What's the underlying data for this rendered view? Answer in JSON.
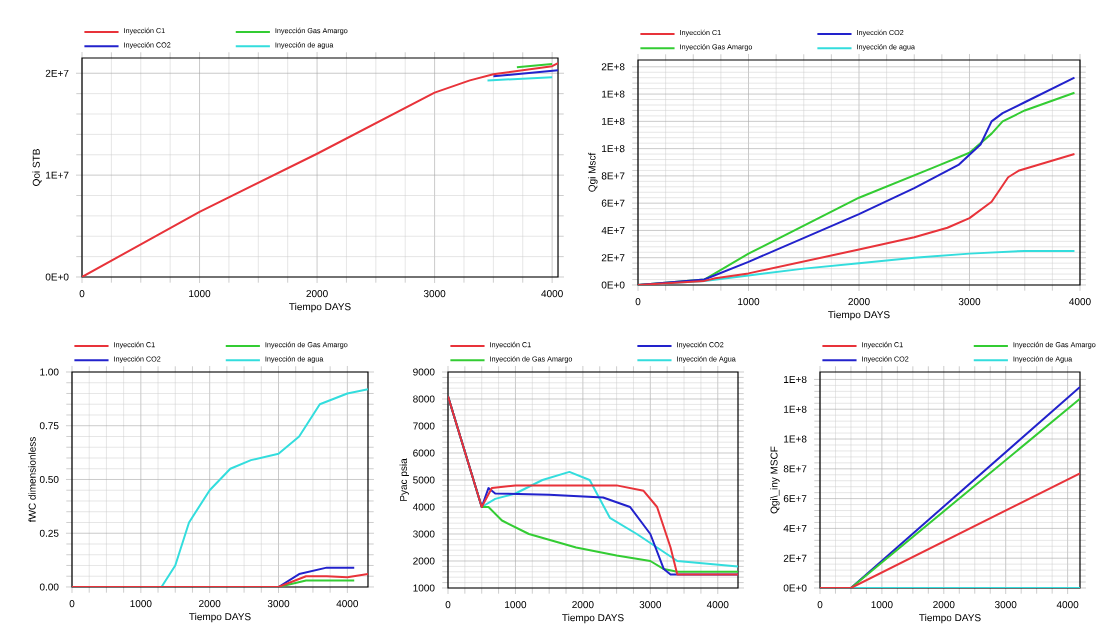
{
  "chart_data": [
    {
      "type": "line",
      "xlabel": "Tiempo   DAYS",
      "ylabel": "Qoi   STB",
      "xlim": [
        0,
        4050
      ],
      "ylim": [
        0,
        21500000
      ],
      "xticks": [
        0,
        1000,
        2000,
        3000,
        4000
      ],
      "yticks": [
        {
          "value": 0,
          "label": "0E+0"
        },
        {
          "value": 10000000,
          "label": "1E+7"
        },
        {
          "value": 20000000,
          "label": "2E+7"
        }
      ],
      "grid": true,
      "legend": "top",
      "marker": "none",
      "line_style": "solid",
      "series": [
        {
          "name": "Inyección C1",
          "color": "#e8333a",
          "x": [
            0,
            1000,
            2000,
            3000,
            3300,
            3500,
            4000,
            4050
          ],
          "values": [
            0,
            6400000,
            12100000,
            18100000,
            19300000,
            19900000,
            20700000,
            21000000
          ]
        },
        {
          "name": "Inyección Gas Amargo",
          "color": "#33cc33",
          "x": [
            3700,
            4000
          ],
          "values": [
            20600000,
            20900000
          ]
        },
        {
          "name": "Inyección CO2",
          "color": "#2222cc",
          "x": [
            3500,
            4050
          ],
          "values": [
            19700000,
            20300000
          ]
        },
        {
          "name": "Inyección de agua",
          "color": "#33dddd",
          "x": [
            3450,
            4000
          ],
          "values": [
            19300000,
            19600000
          ]
        }
      ]
    },
    {
      "type": "line",
      "xlabel": "Tiempo   DAYS",
      "ylabel": "Qgi   Mscf",
      "xlim": [
        0,
        4000
      ],
      "ylim": [
        0,
        165000000
      ],
      "xticks": [
        0,
        1000,
        2000,
        3000,
        4000
      ],
      "yticks": [
        {
          "value": 0,
          "label": "0E+0"
        },
        {
          "value": 20000000,
          "label": "2E+7"
        },
        {
          "value": 40000000,
          "label": "4E+7"
        },
        {
          "value": 60000000,
          "label": "6E+7"
        },
        {
          "value": 80000000,
          "label": "8E+7"
        },
        {
          "value": 100000000,
          "label": "1E+8"
        },
        {
          "value": 120000000,
          "label": "1E+8"
        },
        {
          "value": 140000000,
          "label": "1E+8"
        },
        {
          "value": 160000000,
          "label": "2E+8"
        }
      ],
      "grid": true,
      "legend": "top",
      "marker": "none",
      "line_style": "solid",
      "series": [
        {
          "name": "Inyección C1",
          "color": "#e8333a",
          "x": [
            0,
            600,
            700,
            1000,
            2000,
            2500,
            2800,
            3000,
            3200,
            3350,
            3450,
            3950
          ],
          "values": [
            0,
            3000000,
            5000000,
            8500000,
            26000000,
            35000000,
            42000000,
            49000000,
            61000000,
            79000000,
            84000000,
            96000000
          ]
        },
        {
          "name": "Inyección CO2",
          "color": "#2222cc",
          "x": [
            0,
            600,
            1000,
            2000,
            2500,
            2900,
            3100,
            3200,
            3300,
            3500,
            3950
          ],
          "values": [
            0,
            4000000,
            17000000,
            52000000,
            71000000,
            88000000,
            103000000,
            120000000,
            126000000,
            134000000,
            152000000
          ]
        },
        {
          "name": "Inyección Gas Amargo",
          "color": "#33cc33",
          "x": [
            0,
            600,
            1000,
            2000,
            2700,
            3000,
            3200,
            3300,
            3500,
            3950
          ],
          "values": [
            0,
            4000000,
            23000000,
            64000000,
            87000000,
            97000000,
            111000000,
            120000000,
            128000000,
            141000000
          ]
        },
        {
          "name": "Inyección de agua",
          "color": "#33dddd",
          "x": [
            0,
            600,
            1000,
            1500,
            2000,
            2500,
            3000,
            3500,
            3950
          ],
          "values": [
            0,
            3000000,
            7000000,
            12000000,
            16000000,
            20000000,
            23000000,
            25000000,
            25000000
          ]
        }
      ]
    },
    {
      "type": "line",
      "xlabel": "Tiempo   DAYS",
      "ylabel": "fWC   dimensionless",
      "xlim": [
        0,
        4300
      ],
      "ylim": [
        0,
        1.0
      ],
      "xticks": [
        0,
        1000,
        2000,
        3000,
        4000
      ],
      "yticks": [
        {
          "value": 0,
          "label": "0.00"
        },
        {
          "value": 0.25,
          "label": "0.25"
        },
        {
          "value": 0.5,
          "label": "0.50"
        },
        {
          "value": 0.75,
          "label": "0.75"
        },
        {
          "value": 1.0,
          "label": "1.00"
        }
      ],
      "grid": true,
      "legend": "top",
      "marker": "none",
      "line_style": "solid",
      "series": [
        {
          "name": "Inyección C1",
          "color": "#e8333a",
          "x": [
            0,
            3000,
            3400,
            3700,
            4000,
            4300
          ],
          "values": [
            0,
            0,
            0.05,
            0.05,
            0.045,
            0.06
          ]
        },
        {
          "name": "Inyección de Gas Amargo",
          "color": "#33cc33",
          "x": [
            3000,
            3400,
            4100
          ],
          "values": [
            0,
            0.03,
            0.03
          ]
        },
        {
          "name": "Inyección CO2",
          "color": "#2222cc",
          "x": [
            3000,
            3300,
            3700,
            4100
          ],
          "values": [
            0,
            0.06,
            0.09,
            0.09
          ]
        },
        {
          "name": "Inyección de agua",
          "color": "#33dddd",
          "x": [
            0,
            1300,
            1500,
            1700,
            2000,
            2300,
            2600,
            3000,
            3300,
            3600,
            4000,
            4300
          ],
          "values": [
            0,
            0,
            0.1,
            0.3,
            0.45,
            0.55,
            0.59,
            0.62,
            0.7,
            0.85,
            0.9,
            0.92
          ]
        }
      ]
    },
    {
      "type": "line",
      "xlabel": "Tiempo   DAYS",
      "ylabel": "Pyac   psia",
      "xlim": [
        0,
        4300
      ],
      "ylim": [
        1000,
        9000
      ],
      "xticks": [
        0,
        1000,
        2000,
        3000,
        4000
      ],
      "yticks": [
        1000,
        2000,
        3000,
        4000,
        5000,
        6000,
        7000,
        8000,
        9000
      ],
      "grid": true,
      "legend": "top",
      "marker": "none",
      "line_style": "solid",
      "series": [
        {
          "name": "Inyección C1",
          "color": "#e8333a",
          "x": [
            0,
            500,
            650,
            1000,
            2500,
            2900,
            3100,
            3300,
            3400,
            4300
          ],
          "values": [
            8100,
            4000,
            4700,
            4800,
            4800,
            4600,
            4000,
            2500,
            1500,
            1500
          ]
        },
        {
          "name": "Inyección CO2",
          "color": "#2222cc",
          "x": [
            0,
            500,
            600,
            700,
            1500,
            2300,
            2700,
            3000,
            3200,
            3300,
            4300
          ],
          "values": [
            8100,
            4000,
            4700,
            4500,
            4450,
            4350,
            4000,
            3000,
            1700,
            1500,
            1500
          ]
        },
        {
          "name": "Inyección de Gas Amargo",
          "color": "#33cc33",
          "x": [
            0,
            500,
            600,
            800,
            1200,
            1900,
            2500,
            3000,
            3200,
            3400,
            4300
          ],
          "values": [
            8100,
            4000,
            4000,
            3500,
            3000,
            2500,
            2200,
            2000,
            1700,
            1600,
            1600
          ]
        },
        {
          "name": "Inyección de Agua",
          "color": "#33dddd",
          "x": [
            0,
            500,
            700,
            1000,
            1400,
            1800,
            2100,
            2400,
            2800,
            3100,
            3400,
            4300
          ],
          "values": [
            8100,
            4000,
            4300,
            4500,
            5000,
            5300,
            5000,
            3600,
            3000,
            2500,
            2000,
            1800
          ]
        }
      ]
    },
    {
      "type": "line",
      "xlabel": "Tiempo   DAYS",
      "ylabel": "Qgi\\_iny   MSCF",
      "xlim": [
        0,
        4200
      ],
      "ylim": [
        0,
        145000000
      ],
      "xticks": [
        0,
        1000,
        2000,
        3000,
        4000
      ],
      "yticks": [
        {
          "value": 0,
          "label": "0E+0"
        },
        {
          "value": 20000000,
          "label": "2E+7"
        },
        {
          "value": 40000000,
          "label": "4E+7"
        },
        {
          "value": 60000000,
          "label": "6E+7"
        },
        {
          "value": 80000000,
          "label": "8E+7"
        },
        {
          "value": 100000000,
          "label": "1E+8"
        },
        {
          "value": 120000000,
          "label": "1E+8"
        },
        {
          "value": 140000000,
          "label": "1E+8"
        }
      ],
      "grid": true,
      "legend": "top",
      "marker": "none",
      "line_style": "solid",
      "series": [
        {
          "name": "Inyección C1",
          "color": "#e8333a",
          "x": [
            0,
            500,
            4200
          ],
          "values": [
            0,
            0,
            77000000
          ]
        },
        {
          "name": "Inyección de Gas Amargo",
          "color": "#33cc33",
          "x": [
            0,
            500,
            4200
          ],
          "values": [
            0,
            0,
            127000000
          ]
        },
        {
          "name": "Inyección CO2",
          "color": "#2222cc",
          "x": [
            0,
            500,
            4200
          ],
          "values": [
            0,
            0,
            135000000
          ]
        },
        {
          "name": "Inyección de Agua",
          "color": "#33dddd",
          "x": [
            0,
            500,
            4200
          ],
          "values": [
            0,
            0,
            0
          ]
        }
      ]
    }
  ]
}
